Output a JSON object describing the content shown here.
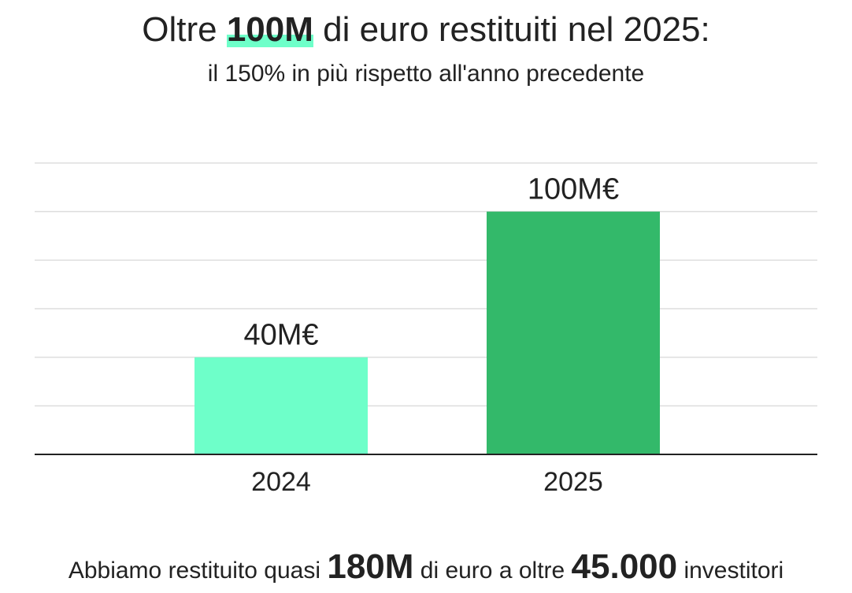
{
  "header": {
    "title_pre": "Oltre ",
    "title_highlight": "100M",
    "title_post": " di euro restituiti nel 2025:",
    "subtitle": "il 150% in più rispetto all'anno precedente"
  },
  "chart_data": {
    "type": "bar",
    "categories": [
      "2024",
      "2025"
    ],
    "values": [
      40,
      100
    ],
    "data_labels": [
      "40M€",
      "100M€"
    ],
    "colors": [
      "#6effc9",
      "#33b96a"
    ],
    "ylim": [
      0,
      120
    ],
    "grid": true,
    "legend": "none"
  },
  "footer": {
    "pre": "Abbiamo restituito quasi ",
    "big1": "180M",
    "mid": " di euro a oltre ",
    "big2": "45.000",
    "post": " investitori"
  }
}
